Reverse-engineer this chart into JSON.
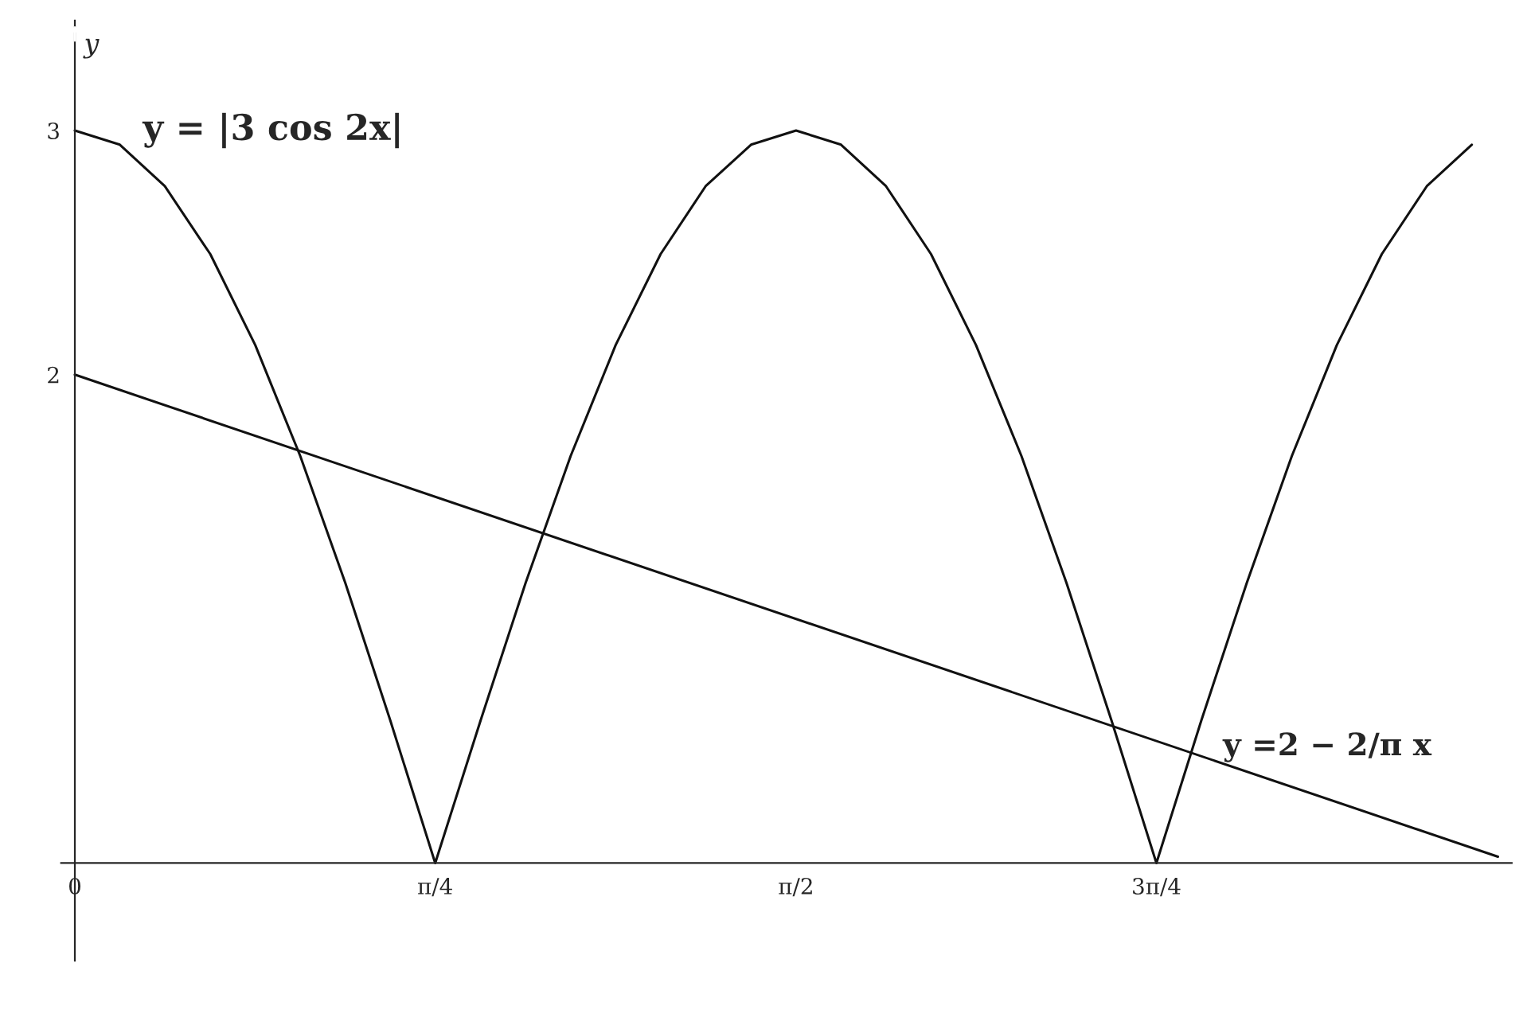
{
  "chart_data": {
    "type": "line",
    "ylabel": "y",
    "xlim": [
      -0.03,
      3.13
    ],
    "ylim": [
      -0.4,
      3.45
    ],
    "xticks": [
      {
        "value": 0,
        "label": "0"
      },
      {
        "value": 0.785,
        "label": "π/4"
      },
      {
        "value": 1.571,
        "label": "π/2"
      },
      {
        "value": 2.356,
        "label": "3π/4"
      }
    ],
    "yticks": [
      2,
      3
    ],
    "grid": false,
    "legend": false,
    "series": [
      {
        "name": "y = |3 cos 2x|",
        "color": "#111111",
        "x": [
          0,
          0.098,
          0.196,
          0.295,
          0.393,
          0.491,
          0.589,
          0.687,
          0.785,
          0.884,
          0.982,
          1.08,
          1.178,
          1.276,
          1.374,
          1.473,
          1.571,
          1.669,
          1.767,
          1.865,
          1.963,
          2.062,
          2.16,
          2.258,
          2.356,
          2.454,
          2.553,
          2.651,
          2.749,
          2.847,
          2.945,
          3.043
        ],
        "values": [
          3,
          2.942,
          2.772,
          2.494,
          2.121,
          1.667,
          1.148,
          0.585,
          0,
          0.585,
          1.148,
          1.667,
          2.121,
          2.494,
          2.772,
          2.942,
          3,
          2.942,
          2.772,
          2.494,
          2.121,
          1.667,
          1.148,
          0.585,
          0,
          0.585,
          1.148,
          1.667,
          2.121,
          2.494,
          2.772,
          2.942
        ]
      },
      {
        "name": "y =2 − 2/π x",
        "color": "#111111",
        "x": [
          0,
          3.1
        ],
        "values": [
          2,
          0.026
        ]
      }
    ]
  }
}
